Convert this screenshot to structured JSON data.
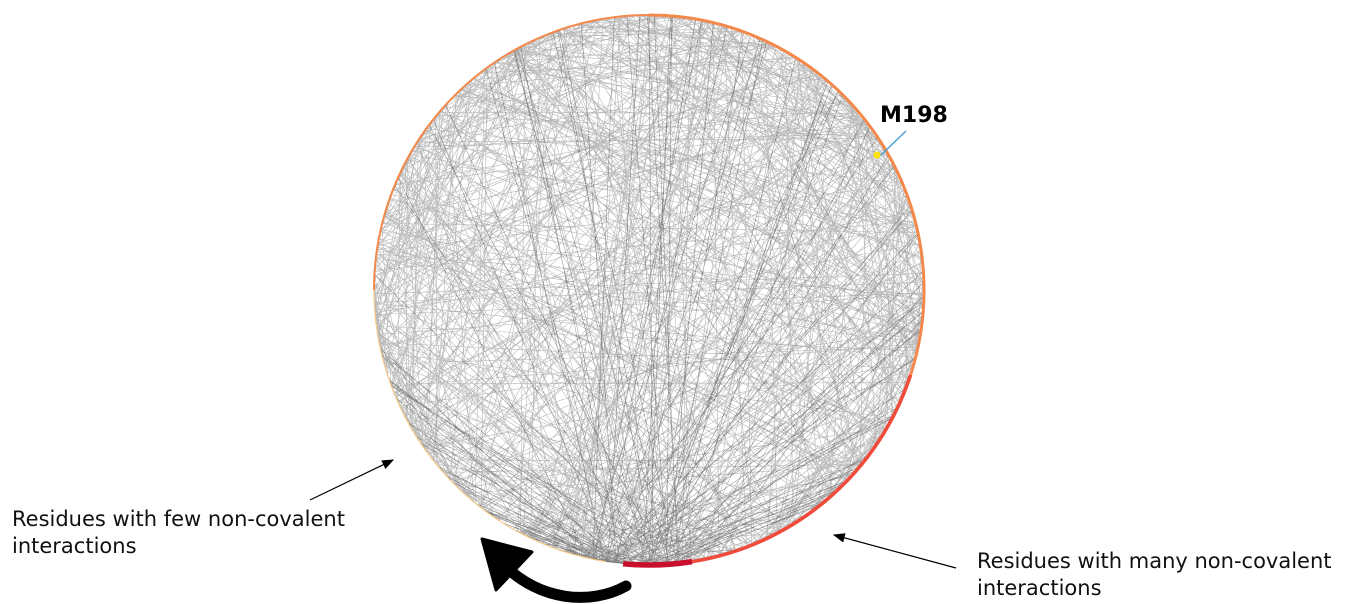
{
  "diagram": {
    "type": "circular residue interaction network",
    "highlight_label": "M198",
    "captions": {
      "few": "Residues with few non-covalent interactions",
      "many": "Residues with many non-covalent interactions"
    },
    "colors": {
      "edge": "#000000",
      "node_low": "#f6c98a",
      "node_mid": "#f4884a",
      "node_high": "#ef4a3a",
      "node_hub": "#c8102e",
      "highlight_node": "#ffe200",
      "leader_line": "#4da3d9"
    },
    "icons": [
      "curved-arrow-icon",
      "pointer-arrow-icon"
    ]
  }
}
